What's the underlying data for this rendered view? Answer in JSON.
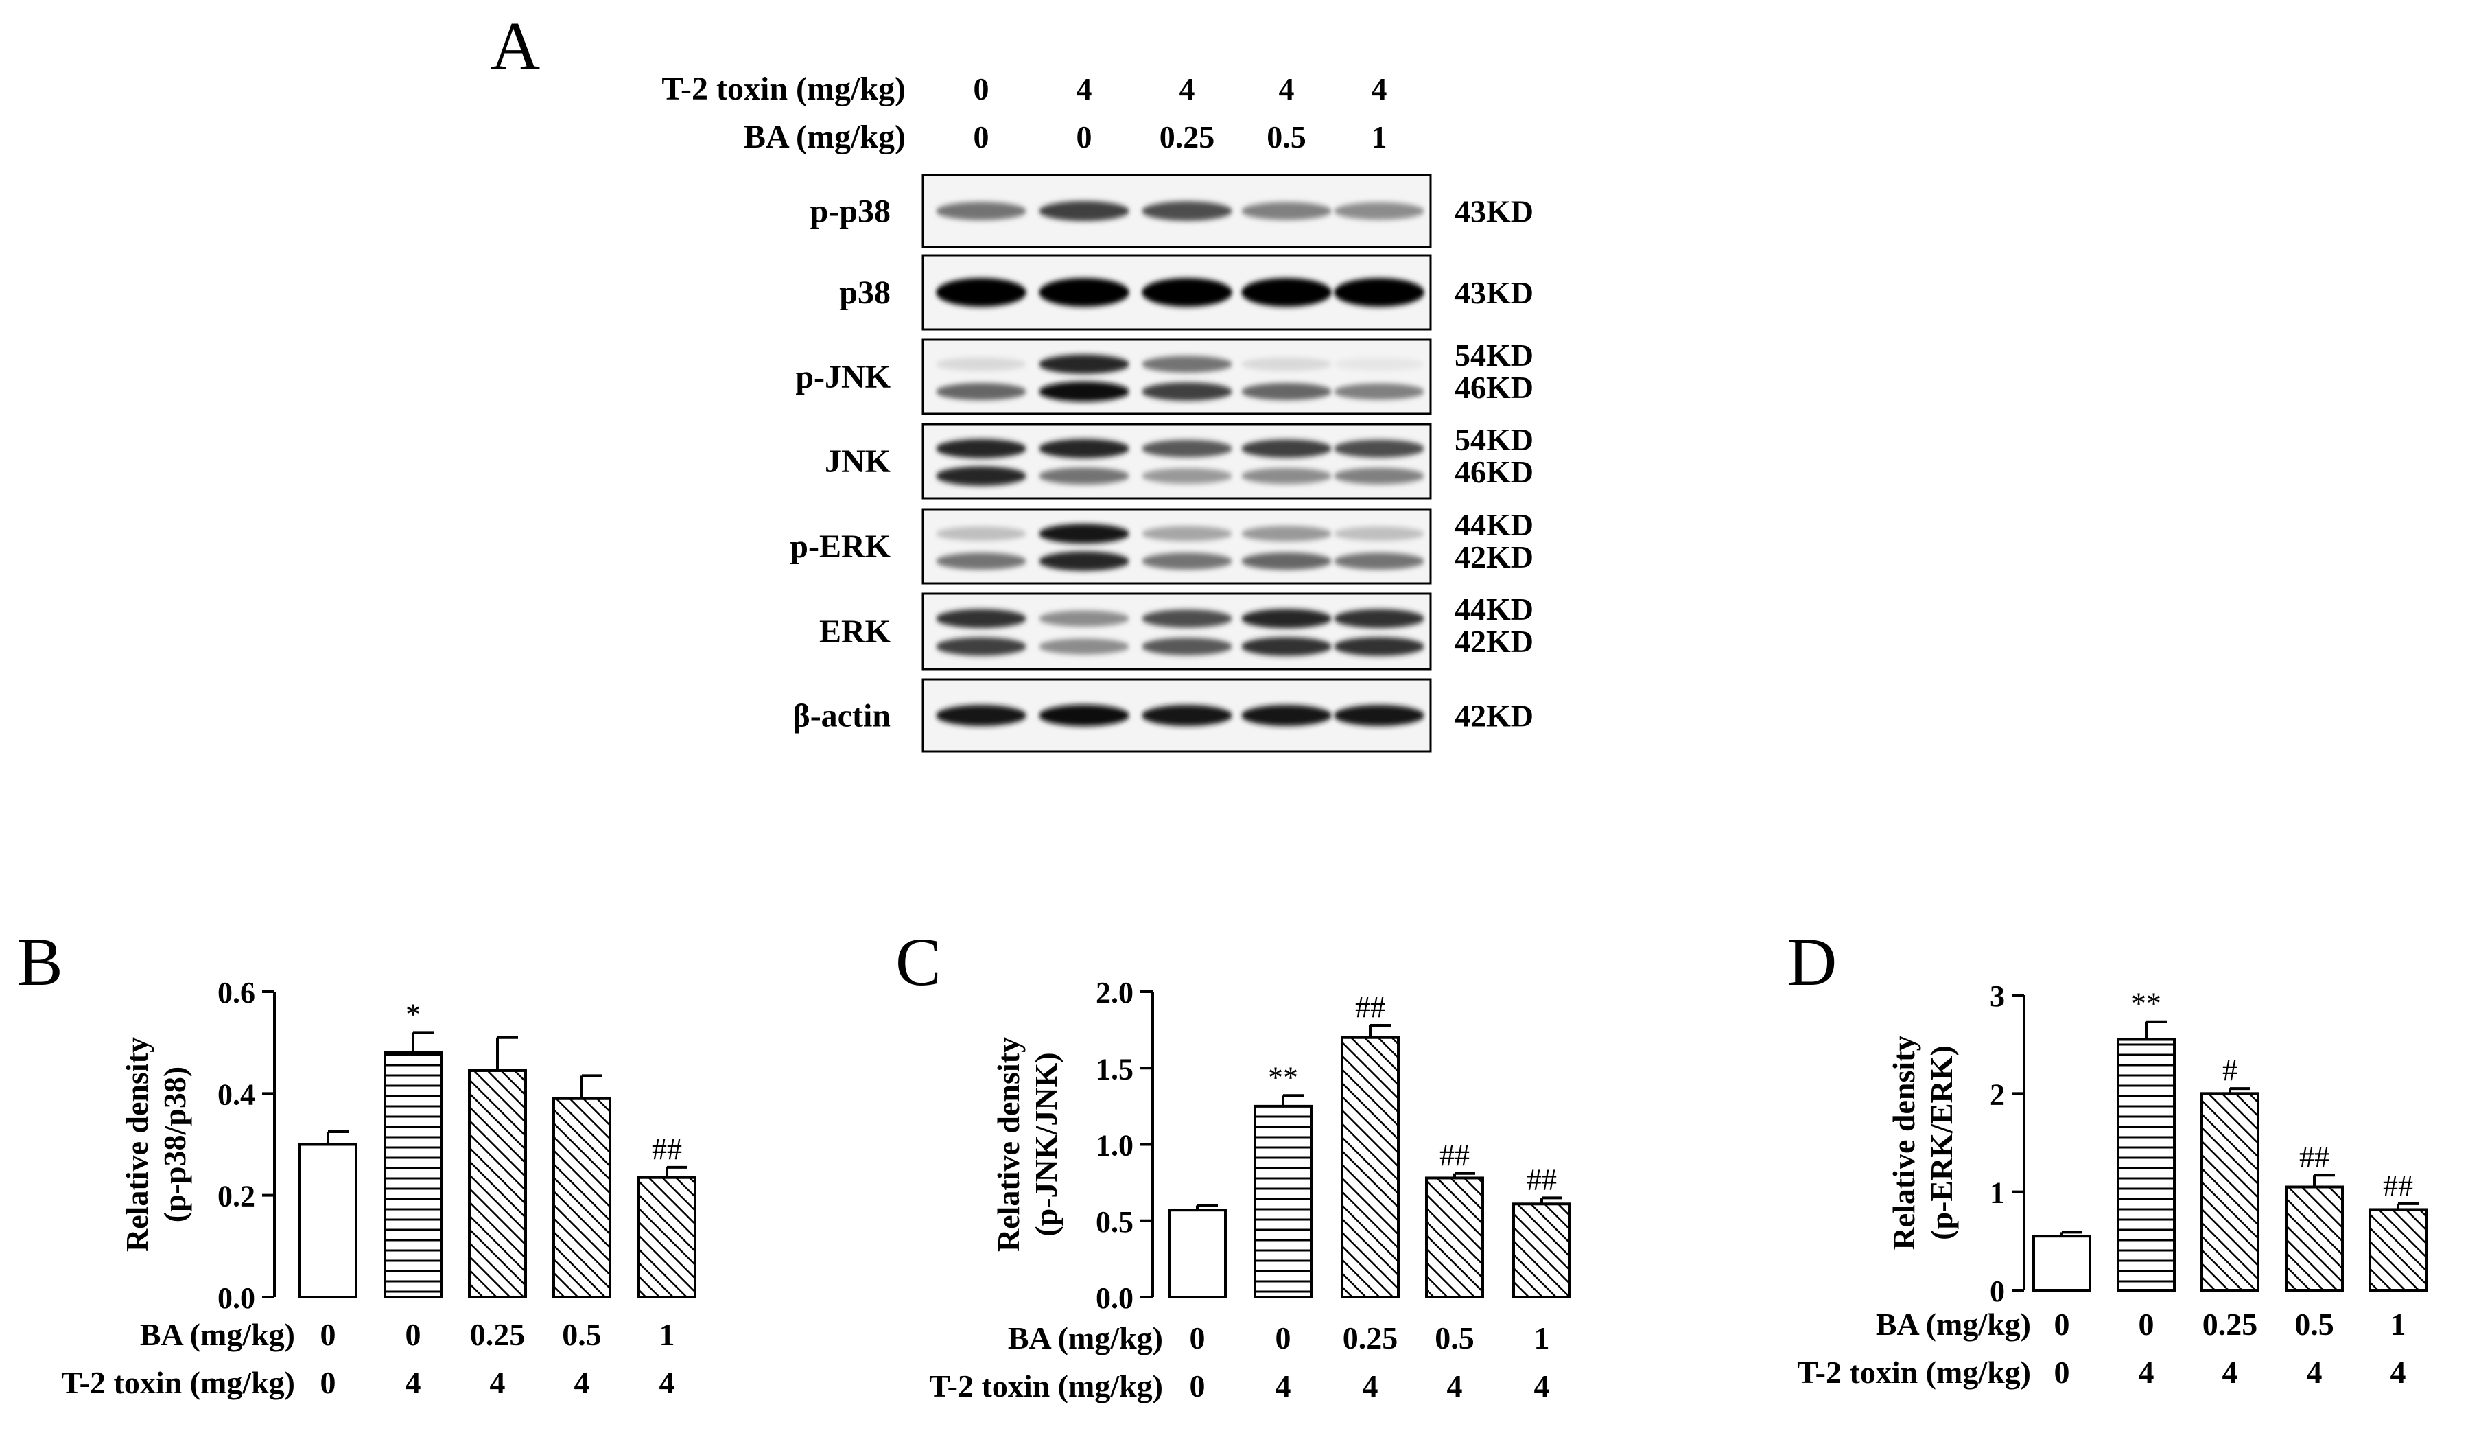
{
  "blot": {
    "panel_letter": "A",
    "header_rows": [
      {
        "label": "T-2 toxin (mg/kg)",
        "values": [
          "0",
          "4",
          "4",
          "4",
          "4"
        ]
      },
      {
        "label": "BA (mg/kg)",
        "values": [
          "0",
          "0",
          "0.25",
          "0.5",
          "1"
        ]
      }
    ],
    "rows": [
      {
        "label": "p-p38",
        "sizes": [
          "43KD"
        ],
        "bands": [
          [
            0.55,
            0.75,
            0.7,
            0.5,
            0.45
          ]
        ]
      },
      {
        "label": "p38",
        "sizes": [
          "43KD"
        ],
        "bands": [
          [
            1,
            1,
            1,
            1,
            1
          ]
        ]
      },
      {
        "label": "p-JNK",
        "sizes": [
          "54KD",
          "46KD"
        ],
        "bands": [
          [
            0.15,
            0.85,
            0.55,
            0.15,
            0.1
          ],
          [
            0.6,
            0.95,
            0.75,
            0.6,
            0.5
          ]
        ]
      },
      {
        "label": "JNK",
        "sizes": [
          "54KD",
          "46KD"
        ],
        "bands": [
          [
            0.85,
            0.85,
            0.65,
            0.75,
            0.7
          ],
          [
            0.85,
            0.55,
            0.4,
            0.45,
            0.5
          ]
        ]
      },
      {
        "label": "p-ERK",
        "sizes": [
          "44KD",
          "42KD"
        ],
        "bands": [
          [
            0.25,
            0.9,
            0.35,
            0.4,
            0.25
          ],
          [
            0.55,
            0.85,
            0.55,
            0.6,
            0.55
          ]
        ]
      },
      {
        "label": "ERK",
        "sizes": [
          "44KD",
          "42KD"
        ],
        "bands": [
          [
            0.8,
            0.45,
            0.7,
            0.85,
            0.8
          ],
          [
            0.75,
            0.45,
            0.65,
            0.8,
            0.8
          ]
        ]
      },
      {
        "label": "β-actin",
        "sizes": [
          "42KD"
        ],
        "bands": [
          [
            0.9,
            0.95,
            0.9,
            0.9,
            0.9
          ]
        ]
      }
    ]
  },
  "chart_data": [
    {
      "type": "bar",
      "panel_letter": "B",
      "title": "",
      "ylabel_line1": "Relative density",
      "ylabel_line2": "(p-p38/p38)",
      "categories": [
        "0",
        "0",
        "0.25",
        "0.5",
        "1"
      ],
      "row1_label": "BA (mg/kg)",
      "row2_label": "T-2 toxin (mg/kg)",
      "row2_values": [
        "0",
        "4",
        "4",
        "4",
        "4"
      ],
      "values": [
        0.3,
        0.48,
        0.445,
        0.39,
        0.235
      ],
      "errors": [
        0.025,
        0.04,
        0.065,
        0.045,
        0.02
      ],
      "annotations": [
        "",
        "*",
        "",
        "",
        "##"
      ],
      "patterns": [
        "none",
        "horizontal",
        "diagonal",
        "diagonal",
        "diagonal"
      ],
      "ylim": [
        0,
        0.6
      ],
      "yticks": [
        "0.0",
        "0.2",
        "0.4",
        "0.6"
      ],
      "ytick_values": [
        0,
        0.2,
        0.4,
        0.6
      ]
    },
    {
      "type": "bar",
      "panel_letter": "C",
      "title": "",
      "ylabel_line1": "Relative density",
      "ylabel_line2": "(p-JNK/JNK)",
      "categories": [
        "0",
        "0",
        "0.25",
        "0.5",
        "1"
      ],
      "row1_label": "BA (mg/kg)",
      "row2_label": "T-2 toxin (mg/kg)",
      "row2_values": [
        "0",
        "4",
        "4",
        "4",
        "4"
      ],
      "values": [
        0.57,
        1.25,
        1.7,
        0.78,
        0.61
      ],
      "errors": [
        0.03,
        0.07,
        0.08,
        0.03,
        0.04
      ],
      "annotations": [
        "",
        "**",
        "##",
        "##",
        "##"
      ],
      "patterns": [
        "none",
        "horizontal",
        "diagonal",
        "diagonal",
        "diagonal"
      ],
      "ylim": [
        0,
        2.0
      ],
      "yticks": [
        "0.0",
        "0.5",
        "1.0",
        "1.5",
        "2.0"
      ],
      "ytick_values": [
        0,
        0.5,
        1.0,
        1.5,
        2.0
      ]
    },
    {
      "type": "bar",
      "panel_letter": "D",
      "title": "",
      "ylabel_line1": "Relative density",
      "ylabel_line2": "(p-ERK/ERK)",
      "categories": [
        "0",
        "0",
        "0.25",
        "0.5",
        "1"
      ],
      "row1_label": "BA (mg/kg)",
      "row2_label": "T-2 toxin (mg/kg)",
      "row2_values": [
        "0",
        "4",
        "4",
        "4",
        "4"
      ],
      "values": [
        0.55,
        2.55,
        2.0,
        1.05,
        0.82
      ],
      "errors": [
        0.04,
        0.18,
        0.05,
        0.12,
        0.06
      ],
      "annotations": [
        "",
        "**",
        "#",
        "##",
        "##"
      ],
      "patterns": [
        "none",
        "horizontal",
        "diagonal",
        "diagonal",
        "diagonal"
      ],
      "ylim": [
        0,
        3
      ],
      "yticks": [
        "0",
        "1",
        "2",
        "3"
      ],
      "ytick_values": [
        0,
        1,
        2,
        3
      ]
    }
  ]
}
